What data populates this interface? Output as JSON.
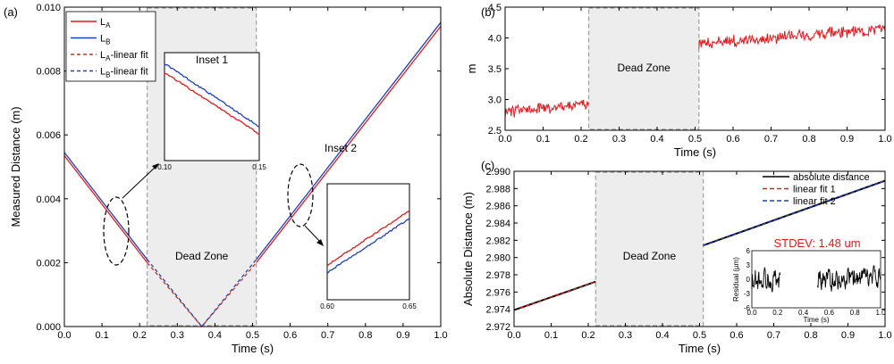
{
  "chart_data": [
    {
      "id": "a",
      "type": "line",
      "panel_label": "(a)",
      "xlabel": "Time (s)",
      "ylabel": "Measured Distance (m)",
      "xlim": [
        0,
        1.0
      ],
      "ylim": [
        0,
        0.01
      ],
      "xticks": [
        "0.0",
        "0.1",
        "0.2",
        "0.3",
        "0.4",
        "0.5",
        "0.6",
        "0.7",
        "0.8",
        "0.9",
        "1.0"
      ],
      "yticks": [
        "0.000",
        "0.002",
        "0.004",
        "0.006",
        "0.008",
        "0.010"
      ],
      "dead_zone": {
        "x": [
          0.22,
          0.51
        ],
        "label": "Dead Zone"
      },
      "legend": {
        "position": "top-left",
        "entries": [
          {
            "main": "L",
            "sub": "A",
            "suffix": "",
            "color": "#e41a1c",
            "style": "solid"
          },
          {
            "main": "L",
            "sub": "B",
            "suffix": "",
            "color": "#1f3fbf",
            "style": "solid"
          },
          {
            "main": "L",
            "sub": "A",
            "suffix": "-linear fit",
            "color": "#c0392b",
            "style": "dashed"
          },
          {
            "main": "L",
            "sub": "B",
            "suffix": "-linear fit",
            "color": "#2c3fa8",
            "style": "dashed"
          }
        ]
      },
      "series": [
        {
          "name": "LA",
          "color": "#e41a1c",
          "style": "solid",
          "segments": [
            [
              [
                0.0,
                0.00535
              ],
              [
                0.22,
                0.002
              ]
            ],
            [
              [
                0.51,
                0.002
              ],
              [
                1.0,
                0.0094
              ]
            ]
          ]
        },
        {
          "name": "LB",
          "color": "#1f3fbf",
          "style": "solid",
          "segments": [
            [
              [
                0.0,
                0.00545
              ],
              [
                0.22,
                0.0021
              ]
            ],
            [
              [
                0.51,
                0.0021
              ],
              [
                1.0,
                0.00952
              ]
            ]
          ]
        },
        {
          "name": "LA-linear fit",
          "color": "#c0392b",
          "style": "dashed",
          "segments": [
            [
              [
                0.22,
                0.002
              ],
              [
                0.365,
                0.0
              ],
              [
                0.51,
                0.002
              ]
            ]
          ]
        },
        {
          "name": "LB-linear fit",
          "color": "#2c3fa8",
          "style": "dashed",
          "segments": [
            [
              [
                0.22,
                0.0021
              ],
              [
                0.365,
                0.0
              ],
              [
                0.51,
                0.0021
              ]
            ]
          ]
        }
      ],
      "annotations": [
        "Inset 1",
        "Inset 2"
      ],
      "insets": [
        {
          "title": "Inset 1",
          "xticks": [
            "0.10",
            "0.15"
          ],
          "xlim": [
            0.1,
            0.15
          ],
          "ylim": [
            0.0032,
            0.0045
          ],
          "lines": [
            {
              "color": "#1f3fbf",
              "points": [
                [
                  0.1,
                  0.00437
                ],
                [
                  0.15,
                  0.00361
                ]
              ]
            },
            {
              "color": "#e41a1c",
              "points": [
                [
                  0.1,
                  0.00426
                ],
                [
                  0.15,
                  0.00352
                ]
              ]
            }
          ]
        },
        {
          "title": "",
          "xticks": [
            "0.60",
            "0.65"
          ],
          "xlim": [
            0.6,
            0.65
          ],
          "ylim": [
            0.003,
            0.0045
          ],
          "lines": [
            {
              "color": "#e41a1c",
              "points": [
                [
                  0.6,
                  0.00345
                ],
                [
                  0.65,
                  0.00415
                ]
              ]
            },
            {
              "color": "#1f3fbf",
              "points": [
                [
                  0.6,
                  0.00335
                ],
                [
                  0.65,
                  0.00405
                ]
              ]
            }
          ]
        }
      ]
    },
    {
      "id": "b",
      "type": "line",
      "panel_label": "(b)",
      "xlabel": "Time (s)",
      "ylabel": "m",
      "xlim": [
        0,
        1.0
      ],
      "ylim": [
        2.5,
        4.5
      ],
      "xticks": [
        "0.0",
        "0.1",
        "0.2",
        "0.3",
        "0.4",
        "0.5",
        "0.6",
        "0.7",
        "0.8",
        "0.9",
        "1.0"
      ],
      "yticks": [
        "2.5",
        "3.0",
        "3.5",
        "4.0",
        "4.5"
      ],
      "dead_zone": {
        "x": [
          0.22,
          0.51
        ],
        "label": "Dead Zone"
      },
      "series": [
        {
          "name": "",
          "color": "#e41a1c",
          "segments_mean": [
            [
              [
                0.0,
                2.8
              ],
              [
                0.22,
                2.92
              ]
            ],
            [
              [
                0.51,
                3.9
              ],
              [
                1.0,
                4.15
              ]
            ]
          ],
          "noise": 0.09
        }
      ]
    },
    {
      "id": "c",
      "type": "line",
      "panel_label": "(c)",
      "xlabel": "Time (s)",
      "ylabel": "Absolute Distance (m)",
      "xlim": [
        0,
        1.0
      ],
      "ylim": [
        2.972,
        2.99
      ],
      "xticks": [
        "0.0",
        "0.1",
        "0.2",
        "0.3",
        "0.4",
        "0.5",
        "0.6",
        "0.7",
        "0.8",
        "0.9",
        "1.0"
      ],
      "yticks": [
        "2.972",
        "2.974",
        "2.976",
        "2.978",
        "2.980",
        "2.982",
        "2.984",
        "2.986",
        "2.988",
        "2.990"
      ],
      "dead_zone": {
        "x": [
          0.22,
          0.51
        ],
        "label": "Dead Zone"
      },
      "legend": {
        "position": "top-right",
        "entries": [
          {
            "label": "absolute distance",
            "color": "#000000",
            "style": "solid"
          },
          {
            "label": "linear fit 1",
            "color": "#e41a1c",
            "style": "dashed"
          },
          {
            "label": "linear fit 2",
            "color": "#1f3fbf",
            "style": "dashed"
          }
        ]
      },
      "series": [
        {
          "name": "absolute distance",
          "color": "#000000",
          "style": "solid",
          "segments": [
            [
              [
                0.0,
                2.9739
              ],
              [
                0.22,
                2.9772
              ]
            ],
            [
              [
                0.51,
                2.9814
              ],
              [
                1.0,
                2.9889
              ]
            ]
          ]
        },
        {
          "name": "linear fit 1",
          "color": "#e41a1c",
          "style": "dashed",
          "segments": [
            [
              [
                0.0,
                2.9739
              ],
              [
                0.22,
                2.9772
              ]
            ]
          ]
        },
        {
          "name": "linear fit 2",
          "color": "#1f3fbf",
          "style": "dashed",
          "segments": [
            [
              [
                0.51,
                2.9814
              ],
              [
                1.0,
                2.9889
              ]
            ]
          ]
        }
      ],
      "inset": {
        "title": "STDEV: 1.48 um",
        "title_color": "#e41a1c",
        "xlabel": "Time (s)",
        "ylabel": "Residual (µm)",
        "xlim": [
          0,
          1.0
        ],
        "ylim": [
          -6,
          6
        ],
        "xticks": [
          "0.0",
          "0.2",
          "0.4",
          "0.6",
          "0.8",
          "1.0"
        ],
        "yticks": [
          "-6",
          "-3",
          "0",
          "3",
          "6"
        ],
        "segments_x": [
          [
            0.0,
            0.22
          ],
          [
            0.51,
            1.0
          ]
        ],
        "noise": 1.48
      }
    }
  ]
}
